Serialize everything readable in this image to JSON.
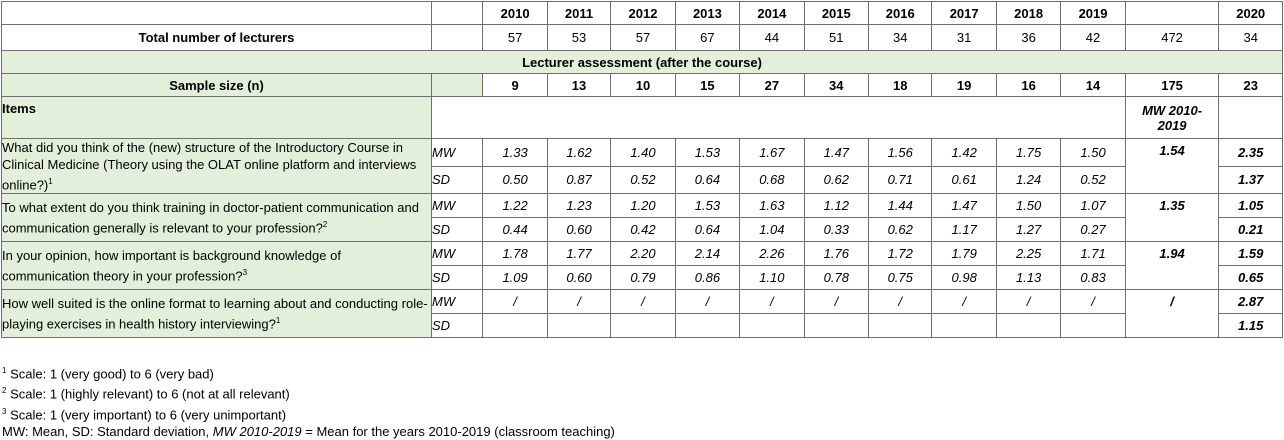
{
  "years": [
    "2010",
    "2011",
    "2012",
    "2013",
    "2014",
    "2015",
    "2016",
    "2017",
    "2018",
    "2019"
  ],
  "year_2020": "2020",
  "total_lecturers": {
    "label": "Total number of lecturers",
    "values": [
      "57",
      "53",
      "57",
      "67",
      "44",
      "51",
      "34",
      "31",
      "36",
      "42"
    ],
    "sum": "472",
    "v2020": "34"
  },
  "section_title": "Lecturer assessment (after the course)",
  "sample_size": {
    "label": "Sample size (n)",
    "values": [
      "9",
      "13",
      "10",
      "15",
      "27",
      "34",
      "18",
      "19",
      "16",
      "14"
    ],
    "sum": "175",
    "v2020": "23"
  },
  "items_header": {
    "label": "Items",
    "mw_label": "MW 2010-2019"
  },
  "items": [
    {
      "question": "What did you think of the (new) structure of the Introductory Course in Clinical Medicine (Theory using the OLAT online platform and interviews online?)",
      "sup": "1",
      "mw_label": "MW",
      "sd_label": "SD",
      "mw": [
        "1.33",
        "1.62",
        "1.40",
        "1.53",
        "1.67",
        "1.47",
        "1.56",
        "1.42",
        "1.75",
        "1.50"
      ],
      "sd": [
        "0.50",
        "0.87",
        "0.52",
        "0.64",
        "0.68",
        "0.62",
        "0.71",
        "0.61",
        "1.24",
        "0.52"
      ],
      "mw_avg": "1.54",
      "mw_2020": "2.35",
      "sd_2020": "1.37"
    },
    {
      "question": "To what extent do you think training in doctor-patient communication and communication generally is relevant to your profession?",
      "sup": "2",
      "mw_label": "MW",
      "sd_label": "SD",
      "mw": [
        "1.22",
        "1.23",
        "1.20",
        "1.53",
        "1.63",
        "1.12",
        "1.44",
        "1.47",
        "1.50",
        "1.07"
      ],
      "sd": [
        "0.44",
        "0.60",
        "0.42",
        "0.64",
        "1.04",
        "0.33",
        "0.62",
        "1.17",
        "1.27",
        "0.27"
      ],
      "mw_avg": "1.35",
      "mw_2020": "1.05",
      "sd_2020": "0.21"
    },
    {
      "question": "In your opinion, how important is background knowledge of communication theory in your profession?",
      "sup": "3",
      "mw_label": "MW",
      "sd_label": "SD",
      "mw": [
        "1.78",
        "1.77",
        "2.20",
        "2.14",
        "2.26",
        "1.76",
        "1.72",
        "1.79",
        "2.25",
        "1.71"
      ],
      "sd": [
        "1.09",
        "0.60",
        "0.79",
        "0.86",
        "1.10",
        "0.78",
        "0.75",
        "0.98",
        "1.13",
        "0.83"
      ],
      "mw_avg": "1.94",
      "mw_2020": "1.59",
      "sd_2020": "0.65"
    },
    {
      "question": "How well suited is the online format to learning about and conducting role-playing exercises in health history interviewing?",
      "sup": "1",
      "mw_label": "MW",
      "sd_label": "SD",
      "mw": [
        "/",
        "/",
        "/",
        "/",
        "/",
        "/",
        "/",
        "/",
        "/",
        "/"
      ],
      "sd": [
        "",
        "",
        "",
        "",
        "",
        "",
        "",
        "",
        "",
        ""
      ],
      "mw_avg": "/",
      "mw_2020": "2.87",
      "sd_2020": "1.15"
    }
  ],
  "footnotes": [
    {
      "sup": "1",
      "text": "Scale: 1 (very good) to 6 (very bad)"
    },
    {
      "sup": "2",
      "text": "Scale: 1 (highly relevant) to 6 (not at all relevant)"
    },
    {
      "sup": "3",
      "text": "Scale: 1 (very important) to 6 (very unimportant)"
    }
  ],
  "legend": {
    "part1": "MW: Mean, SD: Standard deviation, ",
    "italic": "MW 2010-2019",
    "part2": " = Mean for the years 2010-2019 (classroom teaching)"
  }
}
